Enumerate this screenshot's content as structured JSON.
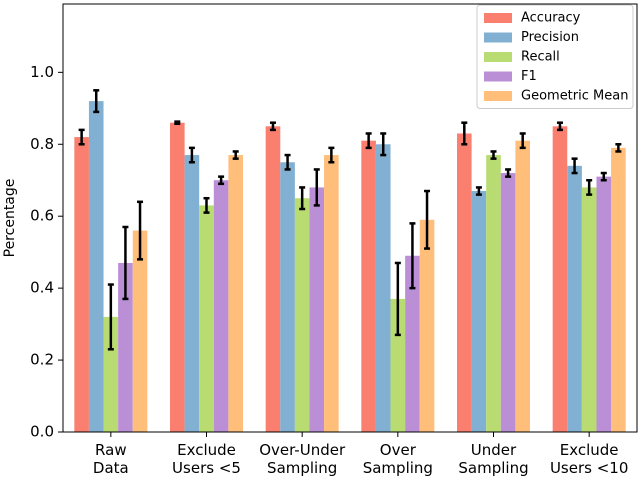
{
  "chart_data": {
    "type": "bar",
    "ylabel": "Percentage",
    "categories": [
      "Raw\nData",
      "Exclude\nUsers <5",
      "Over-Under\nSampling",
      "Over\nSampling",
      "Under\nSampling",
      "Exclude\nUsers <10"
    ],
    "series": [
      {
        "name": "Accuracy",
        "color": "#fa7f6f",
        "values": [
          0.82,
          0.86,
          0.85,
          0.81,
          0.83,
          0.85
        ],
        "errors": [
          0.02,
          0.003,
          0.01,
          0.02,
          0.03,
          0.01
        ]
      },
      {
        "name": "Precision",
        "color": "#82b0d2",
        "values": [
          0.92,
          0.77,
          0.75,
          0.8,
          0.67,
          0.74
        ],
        "errors": [
          0.03,
          0.02,
          0.02,
          0.03,
          0.01,
          0.02
        ]
      },
      {
        "name": "Recall",
        "color": "#b8dc72",
        "values": [
          0.32,
          0.63,
          0.65,
          0.37,
          0.77,
          0.68
        ],
        "errors": [
          0.09,
          0.02,
          0.03,
          0.1,
          0.01,
          0.02
        ]
      },
      {
        "name": "F1",
        "color": "#bb8fd6",
        "values": [
          0.47,
          0.7,
          0.68,
          0.49,
          0.72,
          0.71
        ],
        "errors": [
          0.1,
          0.01,
          0.05,
          0.09,
          0.01,
          0.01
        ]
      },
      {
        "name": "Geometric Mean",
        "color": "#ffbe7a",
        "values": [
          0.56,
          0.77,
          0.77,
          0.59,
          0.81,
          0.79
        ],
        "errors": [
          0.08,
          0.01,
          0.02,
          0.08,
          0.02,
          0.01
        ]
      }
    ],
    "ylim": [
      0,
      1.19
    ],
    "yticks": [
      {
        "value": 0,
        "label": "0.0"
      },
      0.2,
      0.4,
      0.6,
      0.8,
      {
        "value": 1,
        "label": "1.0"
      }
    ],
    "legend": "upper right",
    "grid": false
  }
}
